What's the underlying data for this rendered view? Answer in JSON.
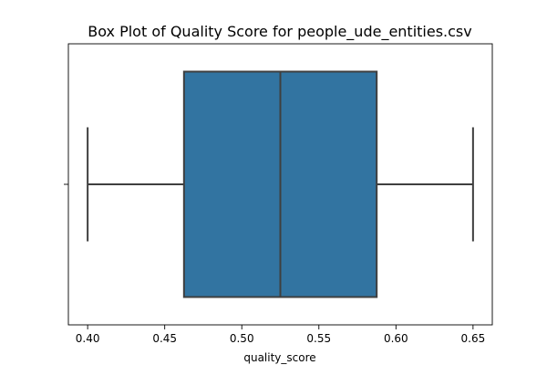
{
  "chart_data": {
    "type": "box",
    "title": "Box Plot of Quality Score for people_ude_entities.csv",
    "xlabel": "quality_score",
    "ylabel": "",
    "orientation": "horizontal",
    "xlim": [
      0.3875,
      0.6625
    ],
    "xticks": [
      "0.40",
      "0.45",
      "0.50",
      "0.55",
      "0.60",
      "0.65"
    ],
    "grid": false,
    "series": [
      {
        "whisker_low": 0.4,
        "q1": 0.4625,
        "median": 0.525,
        "q3": 0.5875,
        "whisker_high": 0.65,
        "color": "#3274a1",
        "edge_color": "#3f3f3f"
      }
    ]
  }
}
